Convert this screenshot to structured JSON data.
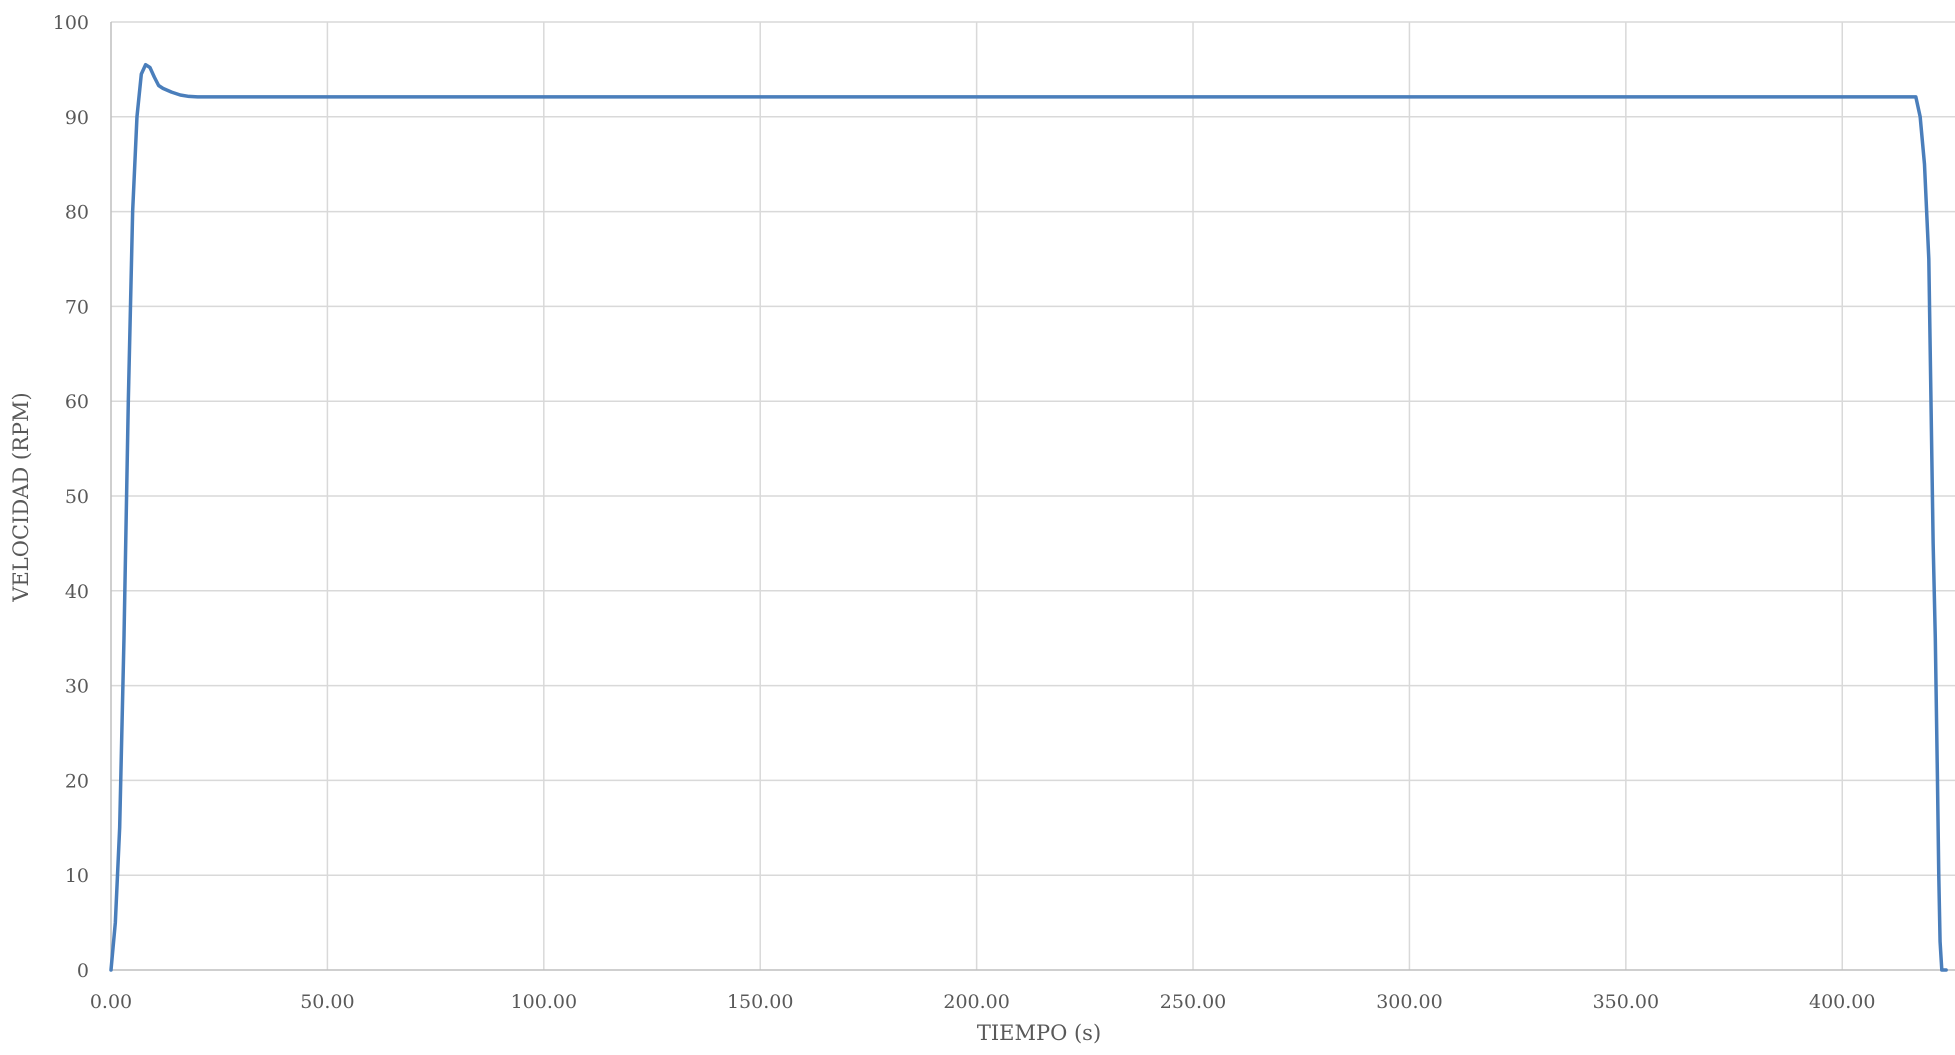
{
  "chart_data": {
    "type": "line",
    "title": "",
    "xlabel": "TIEMPO (s)",
    "ylabel": "VELOCIDAD (RPM)",
    "xlim": [
      0,
      424
    ],
    "ylim": [
      0,
      100
    ],
    "x_ticks": [
      0,
      50,
      100,
      150,
      200,
      250,
      300,
      350,
      400
    ],
    "x_tick_labels": [
      "0.00",
      "50.00",
      "100.00",
      "150.00",
      "200.00",
      "250.00",
      "300.00",
      "350.00",
      "400.00"
    ],
    "y_ticks": [
      0,
      10,
      20,
      30,
      40,
      50,
      60,
      70,
      80,
      90,
      100
    ],
    "y_tick_labels": [
      "0",
      "10",
      "20",
      "30",
      "40",
      "50",
      "60",
      "70",
      "80",
      "90",
      "100"
    ],
    "grid": true,
    "legend": "none",
    "colors": {
      "series": "#4a7ebb",
      "grid": "#d9d9d9",
      "text": "#595959"
    },
    "series": [
      {
        "x": [
          0,
          1,
          2,
          3,
          4,
          5,
          6,
          7,
          8,
          9,
          10,
          11,
          12,
          13,
          14,
          16,
          18,
          20,
          22,
          25,
          30,
          50,
          100,
          150,
          200,
          250,
          300,
          350,
          400,
          417,
          418,
          419,
          420,
          420.5,
          421,
          421.5,
          422,
          422.3,
          422.6,
          423,
          424
        ],
        "y": [
          0,
          5,
          15,
          35,
          60,
          80,
          90,
          94.5,
          95.5,
          95.2,
          94.2,
          93.3,
          93,
          92.8,
          92.6,
          92.3,
          92.15,
          92.1,
          92.1,
          92.1,
          92.1,
          92.1,
          92.1,
          92.1,
          92.1,
          92.1,
          92.1,
          92.1,
          92.1,
          92.1,
          90,
          85,
          75,
          60,
          45,
          35,
          20,
          10,
          3,
          0,
          0
        ]
      }
    ]
  }
}
